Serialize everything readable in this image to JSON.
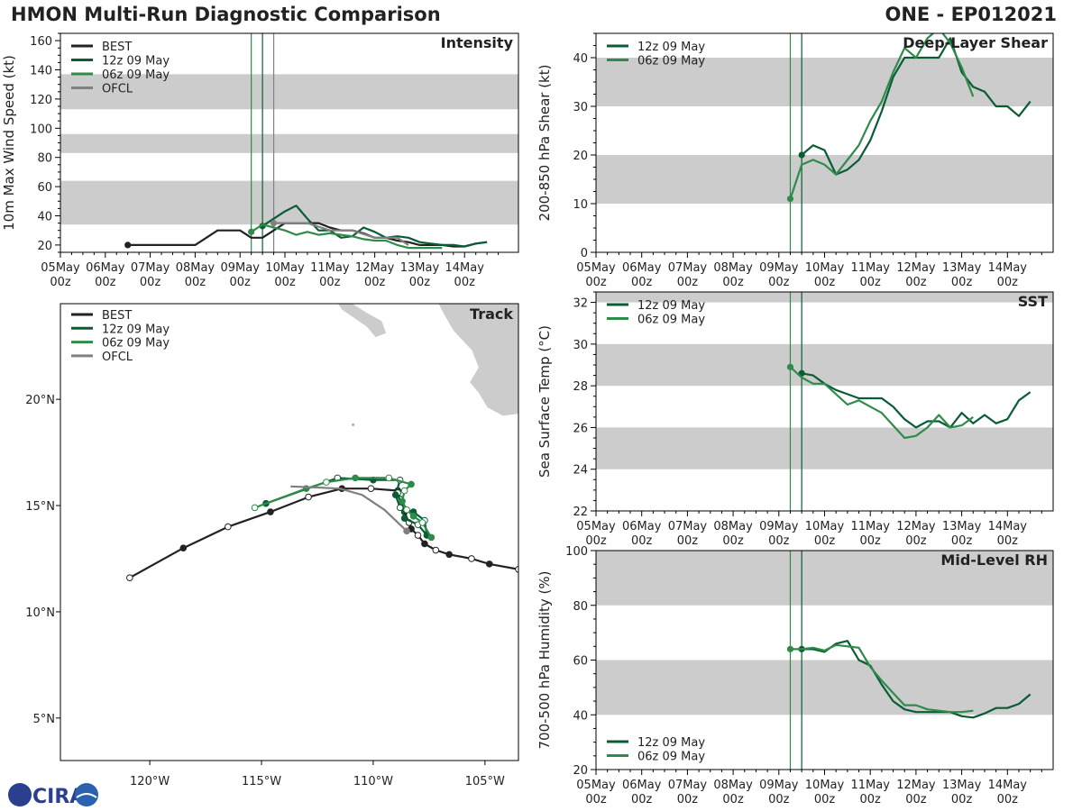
{
  "header": {
    "title": "HMON Multi-Run Diagnostic Comparison",
    "storm_id": "ONE - EP012021"
  },
  "colors": {
    "best": "#222222",
    "run12": "#0a5c34",
    "run06": "#2e8b4a",
    "ofcl": "#808080",
    "band": "#cccccc"
  },
  "time_ticks": [
    "05May\n00z",
    "06May\n00z",
    "07May\n00z",
    "08May\n00z",
    "09May\n00z",
    "10May\n00z",
    "11May\n00z",
    "12May\n00z",
    "13May\n00z",
    "14May\n00z"
  ],
  "logo": {
    "text": "CIRA"
  },
  "chart_data": [
    {
      "id": "intensity",
      "type": "line",
      "title": "Intensity",
      "ylabel": "10m Max Wind Speed (kt)",
      "ylim": [
        15,
        165
      ],
      "xlim": [
        0,
        10.2
      ],
      "yticks": [
        20,
        40,
        60,
        80,
        100,
        120,
        140,
        160
      ],
      "bands": [
        [
          34,
          64
        ],
        [
          83,
          96
        ],
        [
          113,
          137
        ]
      ],
      "vlines": [
        {
          "x": 4.25,
          "series": "06z 09 May"
        },
        {
          "x": 4.5,
          "series": "12z 09 May"
        },
        {
          "x": 4.75,
          "series": "OFCL"
        }
      ],
      "legend": [
        "BEST",
        "12z 09 May",
        "06z 09 May",
        "OFCL"
      ],
      "series": [
        {
          "name": "BEST",
          "key": "best",
          "x": [
            1.5,
            1.75,
            2,
            2.25,
            2.5,
            2.75,
            3,
            3.25,
            3.5,
            3.75,
            4,
            4.25,
            4.5,
            4.75,
            5,
            5.25,
            5.5,
            5.75,
            6,
            6.25,
            6.5,
            6.75,
            7,
            7.25,
            7.5,
            7.75,
            8,
            8.25,
            8.5,
            8.75,
            9,
            9.25,
            9.5
          ],
          "y": [
            20,
            20,
            20,
            20,
            20,
            20,
            20,
            25,
            30,
            30,
            30,
            25,
            25,
            30,
            35,
            35,
            35,
            35,
            32,
            30,
            30,
            28,
            25,
            25,
            23,
            22,
            20,
            20,
            20,
            19,
            19,
            21,
            22
          ]
        },
        {
          "name": "12z 09 May",
          "key": "run12",
          "x": [
            4.5,
            4.75,
            5,
            5.25,
            5.5,
            5.75,
            6,
            6.25,
            6.5,
            6.75,
            7,
            7.25,
            7.5,
            7.75,
            8,
            8.25,
            8.5,
            8.75,
            9,
            9.25,
            9.5
          ],
          "y": [
            33,
            38,
            43,
            47,
            38,
            30,
            30,
            25,
            26,
            32,
            29,
            25,
            26,
            25,
            22,
            21,
            20,
            20,
            19,
            21,
            22
          ]
        },
        {
          "name": "06z 09 May",
          "key": "run06",
          "x": [
            4.25,
            4.5,
            4.75,
            5,
            5.25,
            5.5,
            5.75,
            6,
            6.25,
            6.5,
            6.75,
            7,
            7.25,
            7.5,
            7.75,
            8,
            8.25,
            8.5
          ],
          "y": [
            29,
            34,
            32,
            30,
            27,
            29,
            27,
            28,
            27,
            26,
            24,
            23,
            23,
            20,
            18,
            18,
            18,
            18
          ]
        },
        {
          "name": "OFCL",
          "key": "ofcl",
          "x": [
            4.75,
            5,
            5.25,
            5.5,
            6,
            6.5,
            7,
            7.5,
            7.75
          ],
          "y": [
            35,
            35,
            35,
            35,
            30,
            30,
            25,
            25,
            20
          ]
        }
      ]
    },
    {
      "id": "shear",
      "type": "line",
      "title": "Deep-Layer Shear",
      "ylabel": "200-850 hPa Shear (kt)",
      "ylim": [
        0,
        45
      ],
      "xlim": [
        0,
        10
      ],
      "yticks": [
        0,
        10,
        20,
        30,
        40
      ],
      "bands": [
        [
          10,
          20
        ],
        [
          30,
          40
        ]
      ],
      "vlines": [
        {
          "x": 4.25,
          "series": "06z 09 May"
        },
        {
          "x": 4.5,
          "series": "12z 09 May"
        }
      ],
      "legend": [
        "12z 09 May",
        "06z 09 May"
      ],
      "series": [
        {
          "name": "12z 09 May",
          "key": "run12",
          "x": [
            4.5,
            4.75,
            5,
            5.25,
            5.5,
            5.75,
            6,
            6.25,
            6.5,
            6.75,
            7,
            7.25,
            7.5,
            7.75,
            8,
            8.25,
            8.5,
            8.75,
            9,
            9.25,
            9.5
          ],
          "y": [
            20,
            22,
            21,
            16,
            17,
            19,
            23,
            29,
            36,
            40,
            40,
            40,
            40,
            44,
            37,
            34,
            33,
            30,
            30,
            28,
            31
          ]
        },
        {
          "name": "06z 09 May",
          "key": "run06",
          "x": [
            4.25,
            4.5,
            4.75,
            5,
            5.25,
            5.5,
            5.75,
            6,
            6.25,
            6.5,
            6.75,
            7,
            7.25,
            7.5,
            7.75,
            8,
            8.25
          ],
          "y": [
            11,
            18,
            19,
            18,
            16,
            19,
            22,
            27,
            31,
            37,
            42,
            40,
            44,
            46,
            43,
            38,
            32
          ]
        }
      ]
    },
    {
      "id": "sst",
      "type": "line",
      "title": "SST",
      "ylabel": "Sea Surface Temp (°C)",
      "ylim": [
        22,
        32.5
      ],
      "xlim": [
        0,
        10
      ],
      "yticks": [
        22,
        24,
        26,
        28,
        30,
        32
      ],
      "bands": [
        [
          24,
          26
        ],
        [
          28,
          30
        ],
        [
          32,
          33
        ]
      ],
      "vlines": [
        {
          "x": 4.25,
          "series": "06z 09 May"
        },
        {
          "x": 4.5,
          "series": "12z 09 May"
        }
      ],
      "legend": [
        "12z 09 May",
        "06z 09 May"
      ],
      "series": [
        {
          "name": "12z 09 May",
          "key": "run12",
          "x": [
            4.5,
            4.75,
            5,
            5.25,
            5.5,
            5.75,
            6,
            6.25,
            6.5,
            6.75,
            7,
            7.25,
            7.5,
            7.75,
            8,
            8.25,
            8.5,
            8.75,
            9,
            9.25,
            9.5
          ],
          "y": [
            28.6,
            28.5,
            28.1,
            27.8,
            27.6,
            27.4,
            27.4,
            27.4,
            27.0,
            26.4,
            26.0,
            26.3,
            26.3,
            26.0,
            26.7,
            26.2,
            26.6,
            26.2,
            26.4,
            27.3,
            27.7
          ]
        },
        {
          "name": "06z 09 May",
          "key": "run06",
          "x": [
            4.25,
            4.5,
            4.75,
            5,
            5.25,
            5.5,
            5.75,
            6,
            6.25,
            6.5,
            6.75,
            7,
            7.25,
            7.5,
            7.75,
            8,
            8.25
          ],
          "y": [
            28.9,
            28.4,
            28.1,
            28.1,
            27.6,
            27.1,
            27.3,
            27.0,
            26.7,
            26.1,
            25.5,
            25.6,
            26.0,
            26.6,
            26.0,
            26.1,
            26.5
          ]
        }
      ]
    },
    {
      "id": "rh",
      "type": "line",
      "title": "Mid-Level RH",
      "ylabel": "700-500 hPa Humidity (%)",
      "ylim": [
        20,
        100
      ],
      "xlim": [
        0,
        10
      ],
      "yticks": [
        20,
        40,
        60,
        80,
        100
      ],
      "bands": [
        [
          40,
          60
        ],
        [
          80,
          100
        ]
      ],
      "vlines": [
        {
          "x": 4.25,
          "series": "06z 09 May"
        },
        {
          "x": 4.5,
          "series": "12z 09 May"
        }
      ],
      "legend": [
        "12z 09 May",
        "06z 09 May"
      ],
      "series": [
        {
          "name": "12z 09 May",
          "key": "run12",
          "x": [
            4.5,
            4.75,
            5,
            5.25,
            5.5,
            5.75,
            6,
            6.25,
            6.5,
            6.75,
            7,
            7.25,
            7.5,
            7.75,
            8,
            8.25,
            8.5,
            8.75,
            9,
            9.25,
            9.5
          ],
          "y": [
            64,
            64,
            63,
            66,
            67,
            60,
            58,
            51,
            45,
            42,
            41,
            41,
            41,
            41,
            39.5,
            39,
            40.5,
            42.5,
            42.5,
            44,
            47.5
          ]
        },
        {
          "name": "06z 09 May",
          "key": "run06",
          "x": [
            4.25,
            4.5,
            4.75,
            5,
            5.25,
            5.5,
            5.75,
            6,
            6.25,
            6.5,
            6.75,
            7,
            7.25,
            7.5,
            7.75,
            8,
            8.25
          ],
          "y": [
            64,
            64,
            64.5,
            63.5,
            65.5,
            65,
            64.5,
            57.5,
            52.5,
            48,
            43.5,
            43.5,
            42,
            41.5,
            41,
            41,
            41.5
          ]
        }
      ]
    },
    {
      "id": "track",
      "type": "scatter",
      "title": "Track",
      "xlim": [
        -124,
        -103.5
      ],
      "ylim": [
        3,
        24.5
      ],
      "xticks": [
        -120,
        -115,
        -110,
        -105
      ],
      "xtick_labels": [
        "120°W",
        "115°W",
        "110°W",
        "105°W"
      ],
      "yticks": [
        5,
        10,
        15,
        20
      ],
      "ytick_labels": [
        "5°N",
        "10°N",
        "15°N",
        "20°N"
      ],
      "legend": [
        "BEST",
        "12z 09 May",
        "06z 09 May",
        "OFCL"
      ],
      "series": [
        {
          "name": "BEST",
          "key": "best",
          "lon": [
            -103.5,
            -104.8,
            -105.6,
            -106.6,
            -107.2,
            -107.7,
            -108.0,
            -108.3,
            -108.4,
            -108.6,
            -108.8,
            -108.9,
            -110.1,
            -111.4,
            -112.9,
            -114.6,
            -116.5,
            -118.5,
            -120.9
          ],
          "lat": [
            12.0,
            12.25,
            12.5,
            12.7,
            12.9,
            13.2,
            13.6,
            13.9,
            14.2,
            14.7,
            15.3,
            15.7,
            15.8,
            15.8,
            15.4,
            14.7,
            14.0,
            13.0,
            11.6
          ],
          "filled": [
            0,
            1,
            0,
            1,
            0,
            1,
            0,
            1,
            0,
            1,
            0,
            1,
            0,
            1,
            0,
            1,
            0,
            1,
            0
          ]
        },
        {
          "name": "12z 09 May",
          "key": "run12",
          "lon": [
            -108.9,
            -108.6,
            -108.0,
            -107.6,
            -107.7,
            -108.2,
            -108.8,
            -109.0,
            -108.8,
            -110.0,
            -111.6,
            -114.8
          ],
          "lat": [
            15.6,
            14.4,
            14.1,
            13.6,
            14.3,
            14.7,
            14.9,
            15.5,
            16.2,
            16.2,
            16.3,
            15.1
          ],
          "filled": [
            0,
            1,
            0,
            1,
            0,
            1,
            0,
            1,
            0,
            1,
            0,
            1
          ]
        },
        {
          "name": "06z 09 May",
          "key": "run06",
          "lon": [
            -107.4,
            -107.8,
            -108.2,
            -108.5,
            -108.7,
            -108.6,
            -108.3,
            -109.3,
            -110.8,
            -112.1,
            -113.0,
            -115.3
          ],
          "lat": [
            13.5,
            14.2,
            14.5,
            14.8,
            15.2,
            15.7,
            16.0,
            16.3,
            16.3,
            16.1,
            15.8,
            14.9
          ],
          "filled": [
            1,
            0,
            1,
            0,
            1,
            0,
            1,
            0,
            1,
            0,
            1,
            0
          ]
        },
        {
          "name": "OFCL",
          "key": "ofcl",
          "lon": [
            -108.5,
            -109.5,
            -110.5,
            -111.5,
            -112.5,
            -113.7
          ],
          "lat": [
            13.8,
            14.8,
            15.5,
            15.8,
            15.85,
            15.9
          ],
          "filled": [
            1,
            0,
            0,
            0,
            0,
            0
          ]
        }
      ]
    }
  ]
}
